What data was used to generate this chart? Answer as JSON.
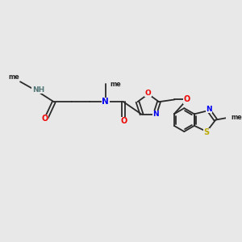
{
  "background_color": "#e8e8e8",
  "bond_color": "#2a2a2a",
  "N_color": "#0000ee",
  "O_color": "#ee0000",
  "S_color": "#bbaa00",
  "C_color": "#2a2a2a",
  "H_color": "#557777",
  "figsize": [
    3.0,
    3.0
  ],
  "dpi": 100,
  "xlim": [
    0,
    10
  ],
  "ylim": [
    0,
    10
  ]
}
